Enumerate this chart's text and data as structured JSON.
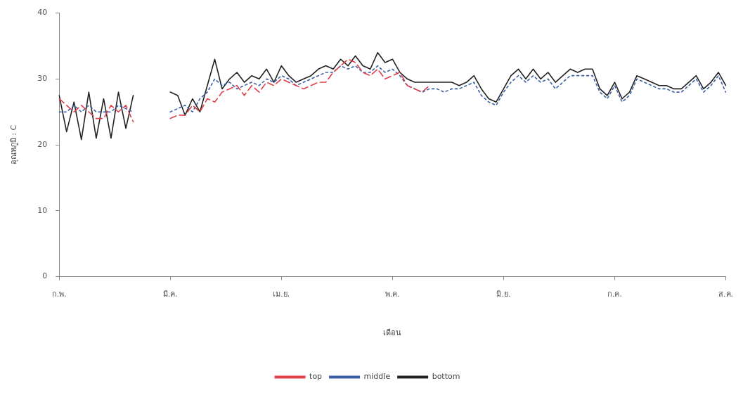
{
  "chart_data": {
    "type": "line",
    "xlabel": "เดือน",
    "ylabel": "อุณหภูมิ : C",
    "categories": [
      "ก.พ.",
      null,
      null,
      null,
      null,
      null,
      null,
      null,
      null,
      null,
      null,
      null,
      null,
      null,
      null,
      "มี.ค.",
      null,
      null,
      null,
      null,
      null,
      null,
      null,
      null,
      null,
      null,
      null,
      null,
      null,
      null,
      "เม.ย.",
      null,
      null,
      null,
      null,
      null,
      null,
      null,
      null,
      null,
      null,
      null,
      null,
      null,
      null,
      "พ.ค.",
      null,
      null,
      null,
      null,
      null,
      null,
      null,
      null,
      null,
      null,
      null,
      null,
      null,
      null,
      "มิ.ย.",
      null,
      null,
      null,
      null,
      null,
      null,
      null,
      null,
      null,
      null,
      null,
      null,
      null,
      null,
      "ก.ค.",
      null,
      null,
      null,
      null,
      null,
      null,
      null,
      null,
      null,
      null,
      null,
      null,
      null,
      null,
      "ส.ค."
    ],
    "ylim": [
      0,
      40
    ],
    "yticks": [
      0,
      10,
      20,
      30,
      40
    ],
    "grid": false,
    "legend": "bottom",
    "marker": "none",
    "series": [
      {
        "name": "top",
        "color": "#e0404a",
        "line_style": "dashed",
        "values": [
          27,
          26,
          25,
          26,
          25,
          24,
          24,
          26,
          25,
          26,
          23.5,
          null,
          null,
          null,
          null,
          24,
          24.5,
          24.5,
          26,
          25,
          27,
          26.5,
          28,
          28.5,
          29,
          27.5,
          29,
          28,
          29.5,
          29,
          30,
          29.5,
          29,
          28.5,
          29,
          29.5,
          29.5,
          31,
          32,
          33,
          32.5,
          31,
          30.5,
          31.5,
          30,
          30.5,
          31,
          29,
          28.5,
          28,
          29,
          null,
          null,
          null,
          null,
          null,
          null,
          null,
          null,
          null,
          null,
          null,
          null,
          null,
          null,
          null,
          null,
          null,
          null,
          null,
          null,
          null,
          null,
          null,
          null,
          null,
          null,
          null,
          null,
          null,
          null,
          null,
          null,
          null,
          null,
          null,
          null,
          null,
          null,
          null,
          null
        ]
      },
      {
        "name": "middle",
        "color": "#3a5fa8",
        "line_style": "dotted",
        "values": [
          25,
          25,
          26,
          25,
          26,
          25,
          25,
          25,
          26,
          25.5,
          25,
          null,
          null,
          null,
          null,
          25,
          25.5,
          26,
          25,
          27,
          28,
          30,
          29,
          29.5,
          28.5,
          29,
          29.5,
          29,
          30,
          29.5,
          30.5,
          30,
          29,
          29.5,
          30,
          30.5,
          31,
          31,
          32,
          31.5,
          32,
          31,
          31,
          32,
          31,
          31.5,
          30.5,
          29,
          28.5,
          28,
          28.5,
          28.5,
          28,
          28.5,
          28.5,
          29,
          29.5,
          27.5,
          26.5,
          26,
          28,
          29.5,
          30.5,
          29.5,
          30.5,
          29.5,
          30,
          28.5,
          29.5,
          30.5,
          30.5,
          30.5,
          30.5,
          28,
          27,
          29,
          26.5,
          27.5,
          30,
          29.5,
          29,
          28.5,
          28.5,
          28,
          28,
          29,
          30,
          28,
          29,
          30.5,
          28
        ]
      },
      {
        "name": "bottom",
        "color": "#222222",
        "line_style": "solid",
        "values": [
          27.5,
          22,
          26.5,
          20.8,
          28,
          21,
          27,
          21,
          28,
          22.5,
          27.5,
          null,
          null,
          null,
          null,
          28,
          27.5,
          24.5,
          27,
          25,
          29,
          33,
          28.5,
          30,
          31,
          29.5,
          30.5,
          30,
          31.5,
          29.5,
          32,
          30.5,
          29.5,
          30,
          30.5,
          31.5,
          32,
          31.5,
          33,
          32,
          33.5,
          32,
          31.5,
          34,
          32.5,
          33,
          31,
          30,
          29.5,
          29.5,
          29.5,
          29.5,
          29.5,
          29.5,
          29,
          29.5,
          30.5,
          28.5,
          27,
          26.5,
          28.5,
          30.5,
          31.5,
          30,
          31.5,
          30,
          31,
          29.5,
          30.5,
          31.5,
          31,
          31.5,
          31.5,
          28.5,
          27.5,
          29.5,
          27,
          28,
          30.5,
          30,
          29.5,
          29,
          29,
          28.5,
          28.5,
          29.5,
          30.5,
          28.5,
          29.5,
          31,
          29
        ]
      }
    ]
  }
}
